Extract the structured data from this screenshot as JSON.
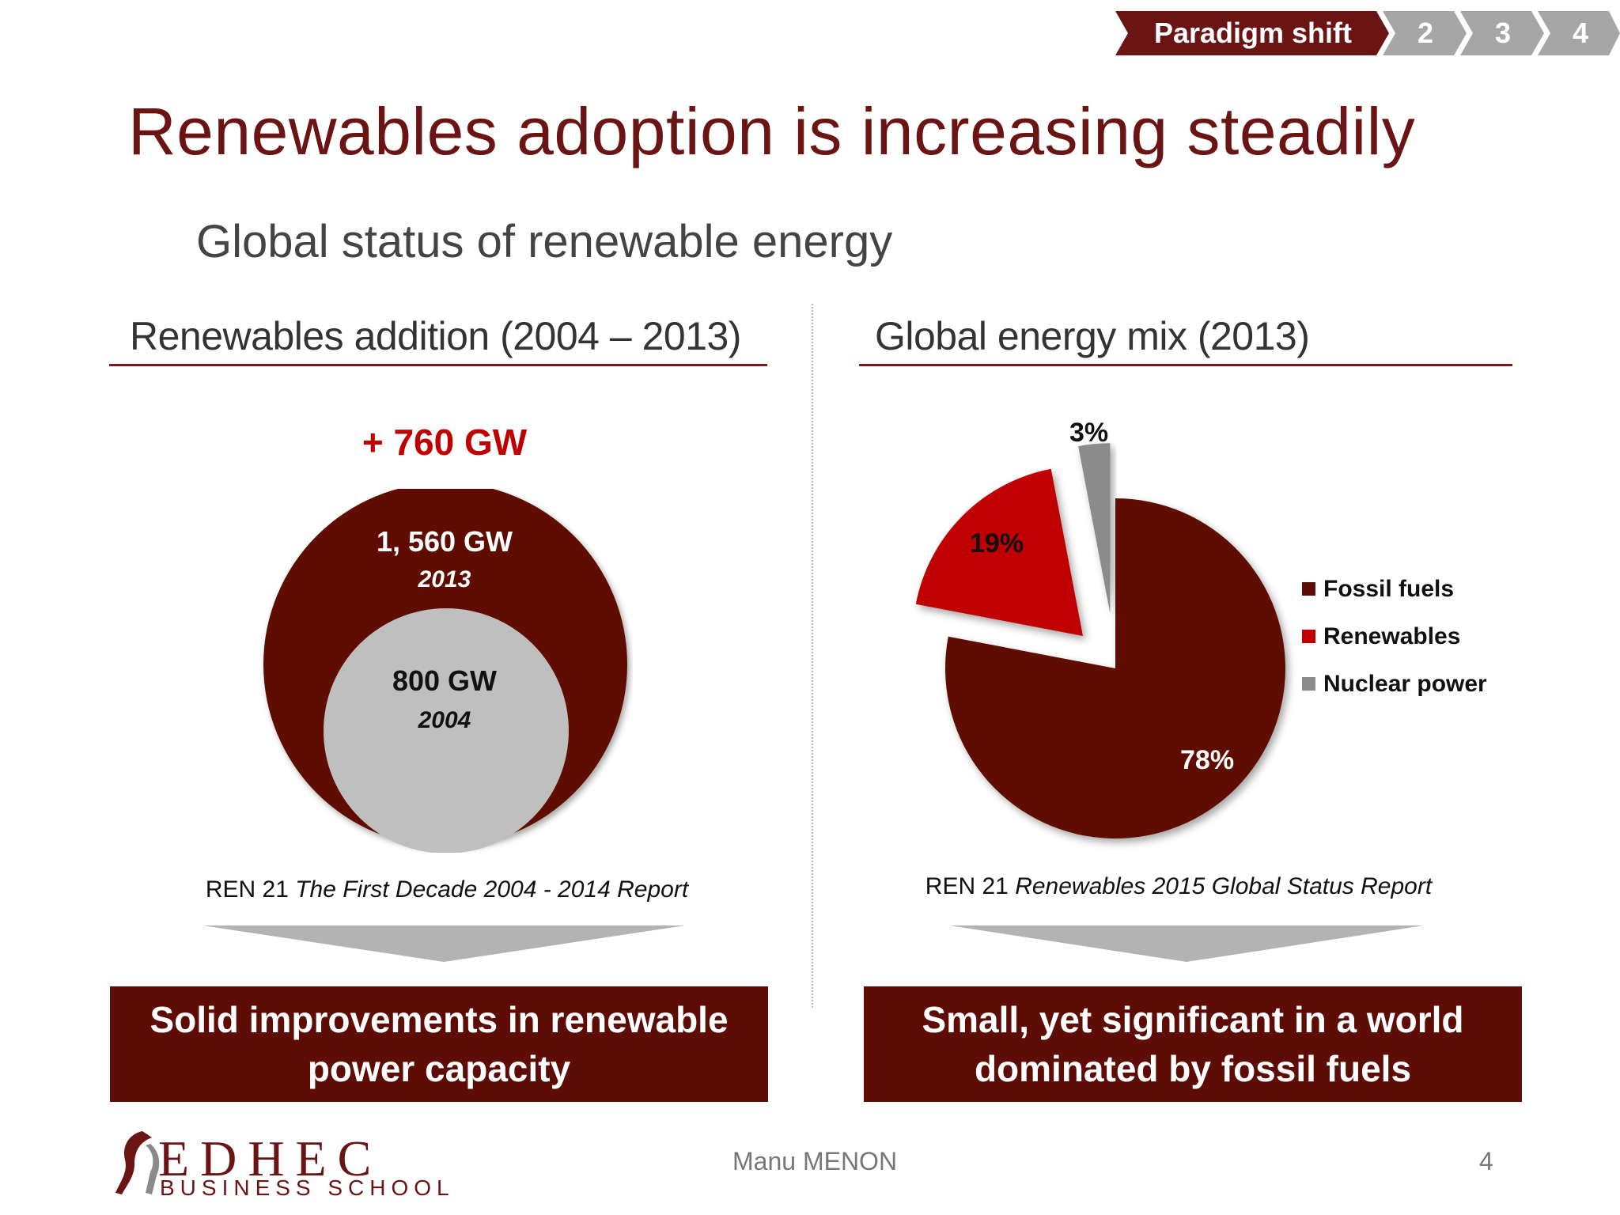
{
  "breadcrumb": {
    "steps": [
      {
        "label": "Paradigm shift",
        "active": true
      },
      {
        "label": "2",
        "active": false
      },
      {
        "label": "3",
        "active": false
      },
      {
        "label": "4",
        "active": false
      }
    ],
    "active_color": "#6b1414",
    "inactive_color": "#a6a6a6"
  },
  "title": "Renewables adoption is increasing steadily",
  "subtitle": "Global status of renewable energy",
  "left_section": {
    "heading": "Renewables addition (2004 – 2013)",
    "added_label": "+ 760 GW",
    "outer_circle": {
      "value_label": "1, 560 GW",
      "year": "2013",
      "color": "#5e0c06"
    },
    "inner_circle": {
      "value_label": "800 GW",
      "year": "2004",
      "color": "#bfbfbf"
    },
    "source_prefix": "REN 21 ",
    "source_title": "The First Decade 2004 - 2014 Report",
    "callout": "Solid improvements in renewable power capacity"
  },
  "right_section": {
    "heading": "Global energy mix (2013)",
    "source_prefix": "REN 21 ",
    "source_title": "Renewables 2015 Global Status Report",
    "callout": "Small, yet significant in a world dominated by fossil fuels"
  },
  "chart_data": {
    "type": "pie",
    "title": "Global energy mix (2013)",
    "slices": [
      {
        "name": "Fossil fuels",
        "value": 78,
        "label": "78%",
        "color": "#5e0c06"
      },
      {
        "name": "Renewables",
        "value": 19,
        "label": "19%",
        "color": "#c00000"
      },
      {
        "name": "Nuclear power",
        "value": 3,
        "label": "3%",
        "color": "#8c8c8c"
      }
    ],
    "legend_position": "right"
  },
  "footer": {
    "logo_main": "EDHEC",
    "logo_sub": "BUSINESS SCHOOL",
    "presenter": "Manu MENON",
    "page_number": "4"
  }
}
